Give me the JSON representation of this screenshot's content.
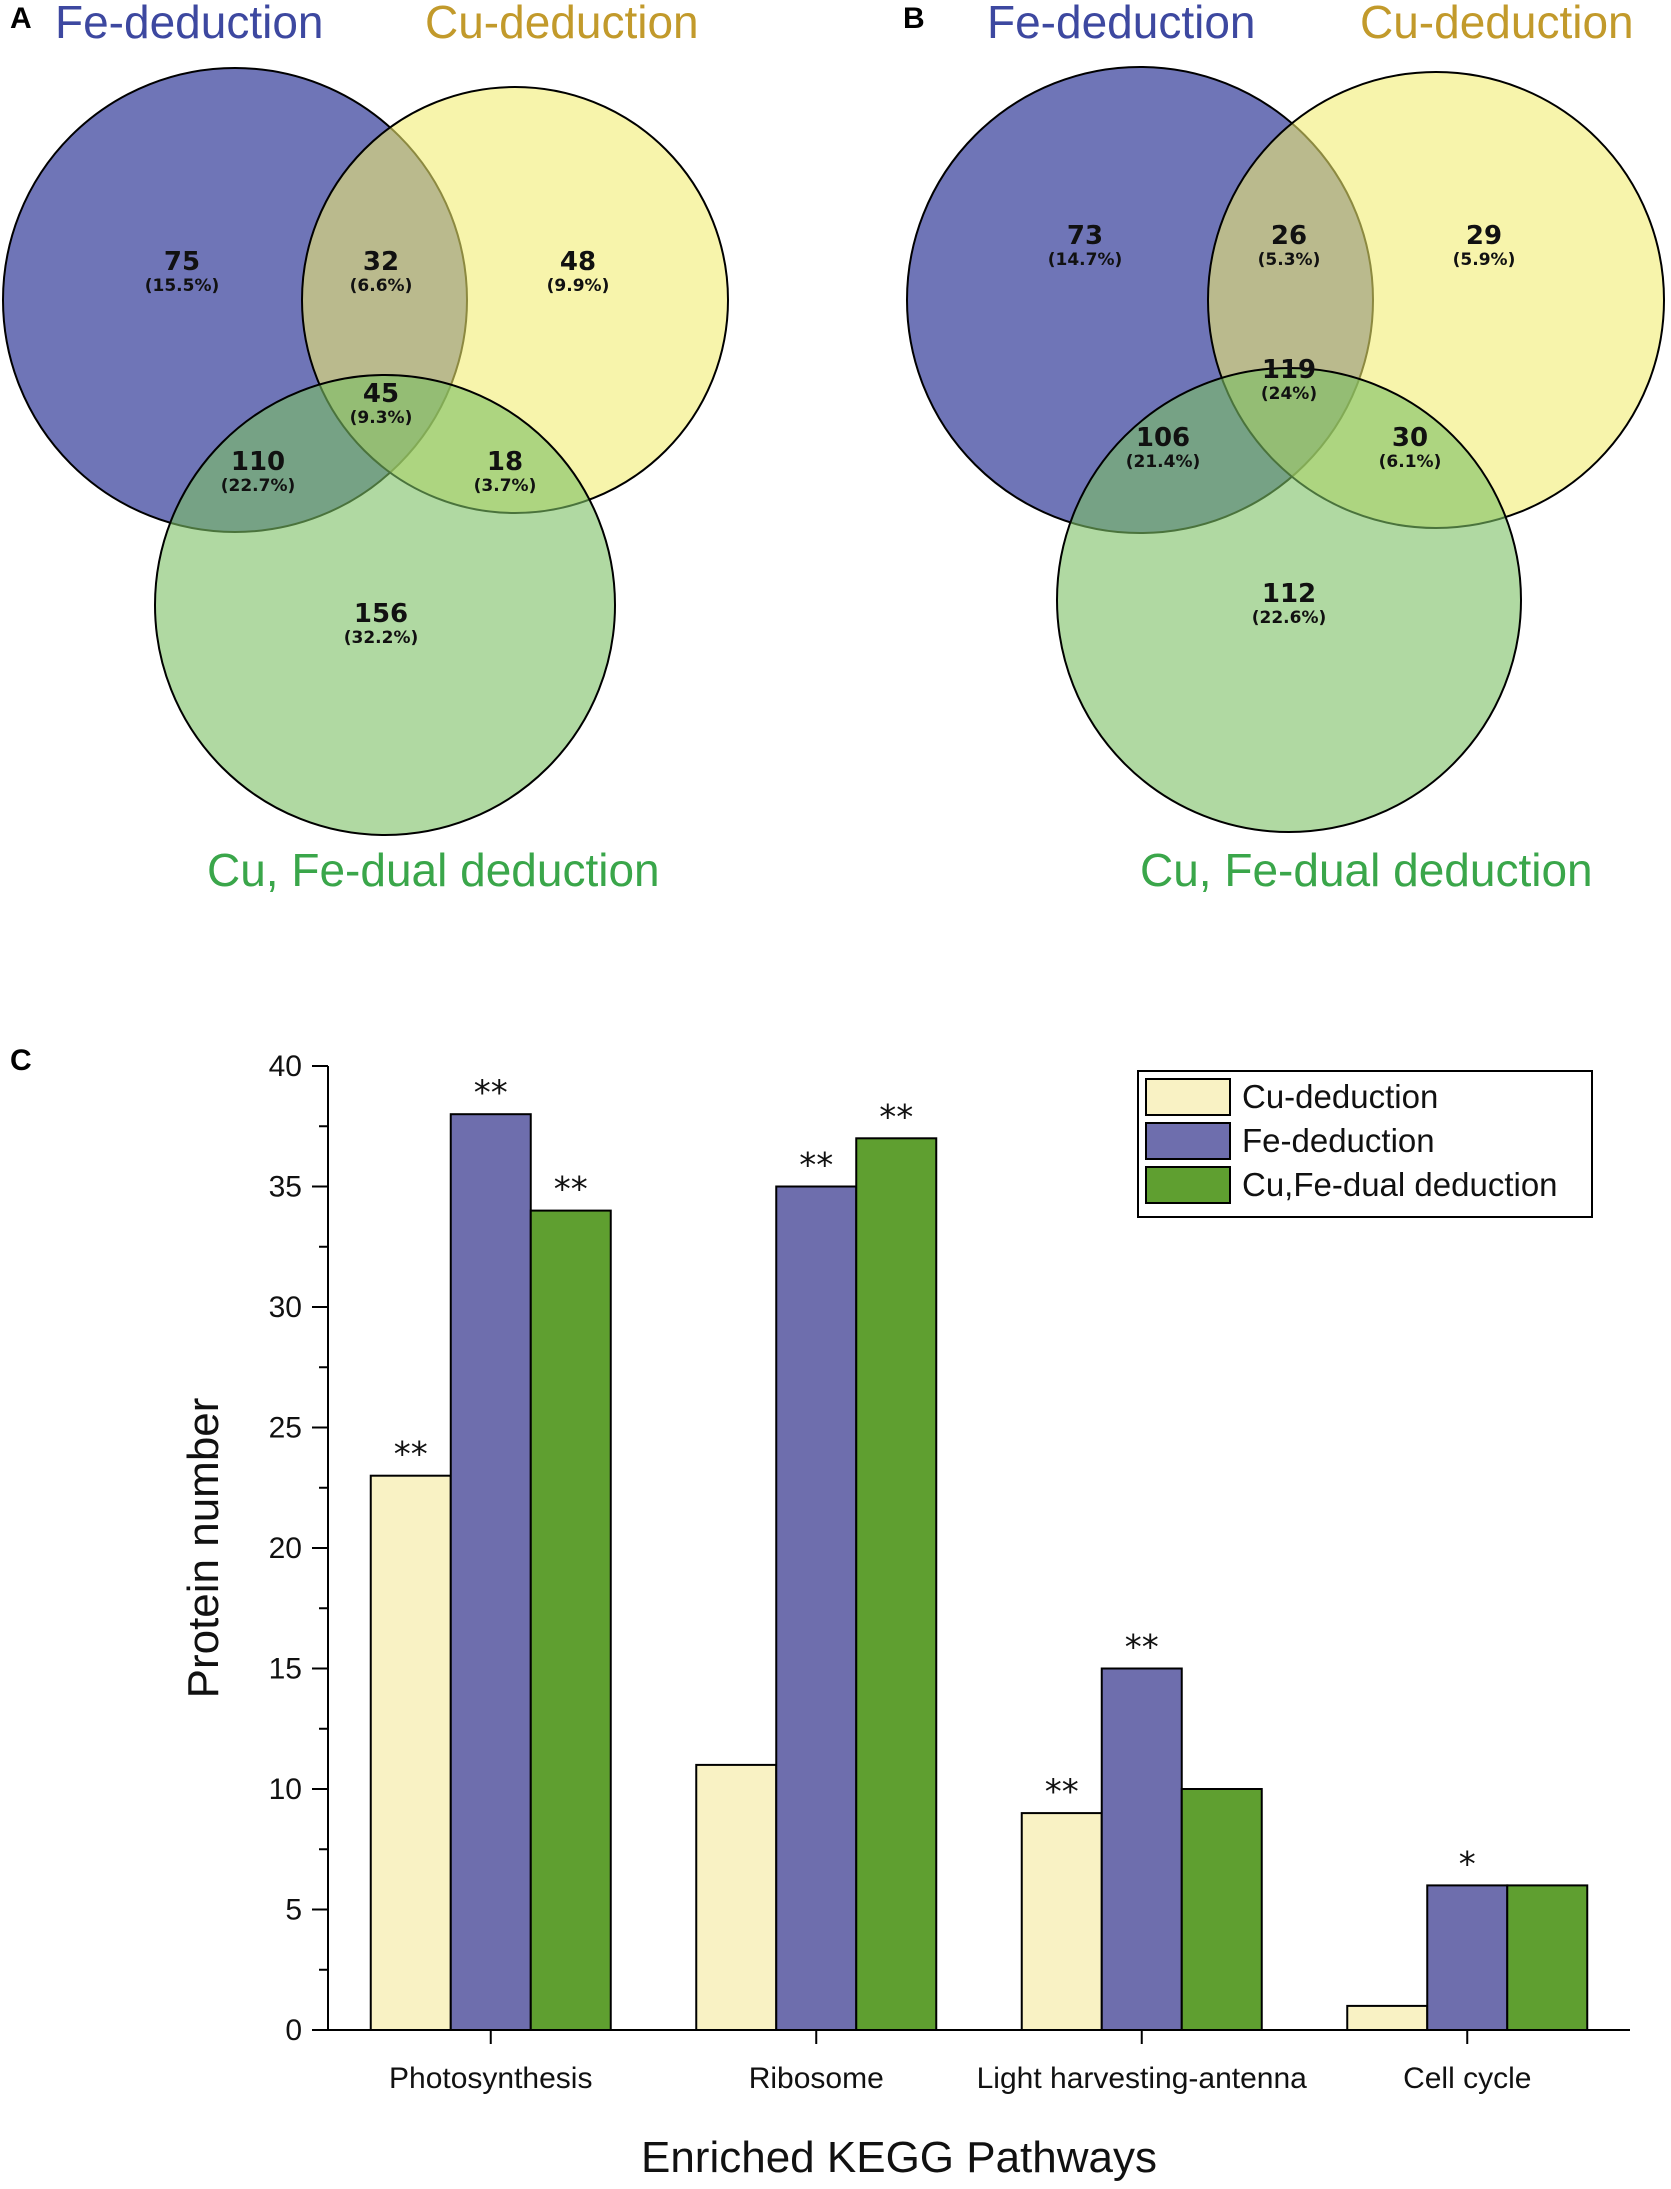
{
  "panels": {
    "a": "A",
    "b": "B",
    "c": "C"
  },
  "venn_titles": {
    "fe": "Fe-deduction",
    "cu": "Cu-deduction",
    "dual": "Cu, Fe-dual deduction"
  },
  "colors": {
    "fe_title": "#3d48a0",
    "cu_title": "#c29a2b",
    "dual_title": "#3aa64a",
    "fe_circle": "#5b62ad",
    "cu_circle": "#f2ec6e",
    "dual_circle": "#7cc064",
    "bar_cu": "#f9f2c4",
    "bar_fe": "#6e6ead",
    "bar_dual": "#5f9f30"
  },
  "venn_a": {
    "fe_only": {
      "n": "75",
      "pct": "(15.5%)"
    },
    "fe_cu": {
      "n": "32",
      "pct": "(6.6%)"
    },
    "cu_only": {
      "n": "48",
      "pct": "(9.9%)"
    },
    "center": {
      "n": "45",
      "pct": "(9.3%)"
    },
    "fe_dual": {
      "n": "110",
      "pct": "(22.7%)"
    },
    "cu_dual": {
      "n": "18",
      "pct": "(3.7%)"
    },
    "dual_only": {
      "n": "156",
      "pct": "(32.2%)"
    }
  },
  "venn_b": {
    "fe_only": {
      "n": "73",
      "pct": "(14.7%)"
    },
    "fe_cu": {
      "n": "26",
      "pct": "(5.3%)"
    },
    "cu_only": {
      "n": "29",
      "pct": "(5.9%)"
    },
    "center": {
      "n": "119",
      "pct": "(24%)"
    },
    "fe_dual": {
      "n": "106",
      "pct": "(21.4%)"
    },
    "cu_dual": {
      "n": "30",
      "pct": "(6.1%)"
    },
    "dual_only": {
      "n": "112",
      "pct": "(22.6%)"
    }
  },
  "chart_data": {
    "type": "bar",
    "title": "",
    "xlabel": "Enriched KEGG Pathways",
    "ylabel": "Protein number",
    "ylim": [
      0,
      40
    ],
    "yticks": [
      0,
      5,
      10,
      15,
      20,
      25,
      30,
      35,
      40
    ],
    "categories": [
      "Photosynthesis",
      "Ribosome",
      "Light harvesting-antenna",
      "Cell cycle"
    ],
    "series": [
      {
        "name": "Cu-deduction",
        "values": [
          23,
          11,
          9,
          1
        ],
        "significance": [
          "**",
          "",
          "**",
          ""
        ]
      },
      {
        "name": "Fe-deduction",
        "values": [
          38,
          35,
          15,
          6
        ],
        "significance": [
          "**",
          "**",
          "**",
          "*"
        ]
      },
      {
        "name": "Cu,Fe-dual deduction",
        "values": [
          34,
          37,
          10,
          6
        ],
        "significance": [
          "**",
          "**",
          "",
          ""
        ]
      }
    ],
    "legend_position": "top-right"
  }
}
